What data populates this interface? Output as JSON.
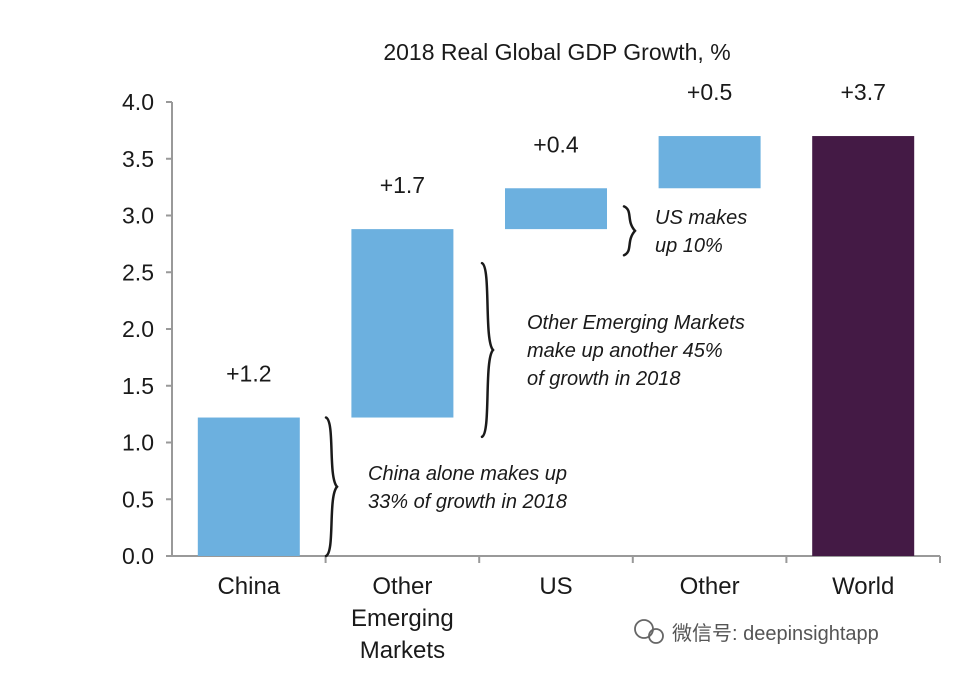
{
  "chart_data": {
    "type": "bar",
    "subtype": "waterfall",
    "title": "2018 Real Global GDP Growth, %",
    "xlabel": "",
    "ylabel": "",
    "ylim": [
      0,
      4.0
    ],
    "y_ticks": [
      "0.0",
      "0.5",
      "1.0",
      "1.5",
      "2.0",
      "2.5",
      "3.0",
      "3.5",
      "4.0"
    ],
    "categories": [
      [
        "China"
      ],
      [
        "Other",
        "Emerging",
        "Markets"
      ],
      [
        "US"
      ],
      [
        "Other"
      ],
      [
        "World"
      ]
    ],
    "bars": [
      {
        "start": 0.0,
        "end": 1.22,
        "label": "+1.2",
        "color": "#6cb0df"
      },
      {
        "start": 1.22,
        "end": 2.88,
        "label": "+1.7",
        "color": "#6cb0df"
      },
      {
        "start": 2.88,
        "end": 3.24,
        "label": "+0.4",
        "color": "#6cb0df"
      },
      {
        "start": 3.24,
        "end": 3.7,
        "label": "+0.5",
        "color": "#6cb0df"
      },
      {
        "start": 0.0,
        "end": 3.7,
        "label": "+3.7",
        "color": "#441a45"
      }
    ],
    "annotations": [
      {
        "lines": [
          "China alone makes up",
          "33% of growth in 2018"
        ],
        "brace_from": 0.0,
        "brace_to": 1.22
      },
      {
        "lines": [
          "Other Emerging Markets",
          "make up another 45%",
          "of growth in 2018"
        ],
        "brace_from": 1.05,
        "brace_to": 2.58
      },
      {
        "lines": [
          "US makes",
          "up 10%"
        ],
        "brace_from": 2.65,
        "brace_to": 3.08
      }
    ],
    "grid": false,
    "legend": "none"
  },
  "watermark": {
    "text": "微信号: deepinsightapp",
    "icon": "wechat-icon"
  },
  "colors": {
    "axis": "#999999",
    "text": "#1a1a1a"
  }
}
